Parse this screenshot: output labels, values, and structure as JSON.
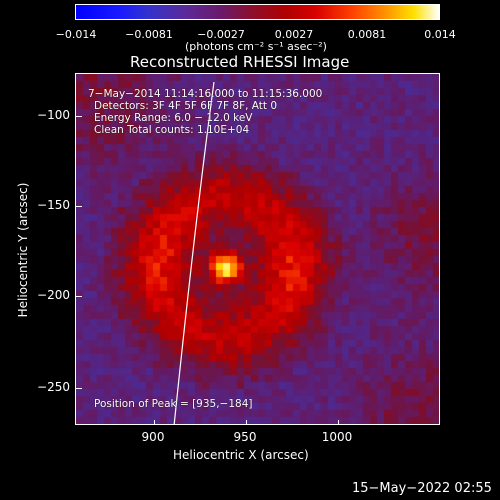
{
  "colorbar": {
    "ticks": [
      "−0.014",
      "−0.0081",
      "−0.0027",
      "0.0027",
      "0.0081",
      "0.014"
    ],
    "unit_label": "(photons cm⁻² s⁻¹ asec⁻²)"
  },
  "title": "Reconstructed RHESSI Image",
  "info": {
    "time_range": "7−May−2014 11:14:16.000 to 11:15:36.000",
    "detectors": "Detectors: 3F 4F 5F 6F 7F 8F, Att 0",
    "energy_range": "Energy Range: 6.0 − 12.0 keV",
    "clean": "Clean    Total counts: 1.10E+04",
    "peak": "Position of Peak = [935,−184]"
  },
  "axes": {
    "ylabel": "Heliocentric Y (arcsec)",
    "xlabel": "Heliocentric X (arcsec)",
    "yticks": [
      "−100",
      "−150",
      "−200",
      "−250"
    ],
    "xticks": [
      "900",
      "950",
      "1000"
    ]
  },
  "timestamp": "15−May−2022 02:55"
}
